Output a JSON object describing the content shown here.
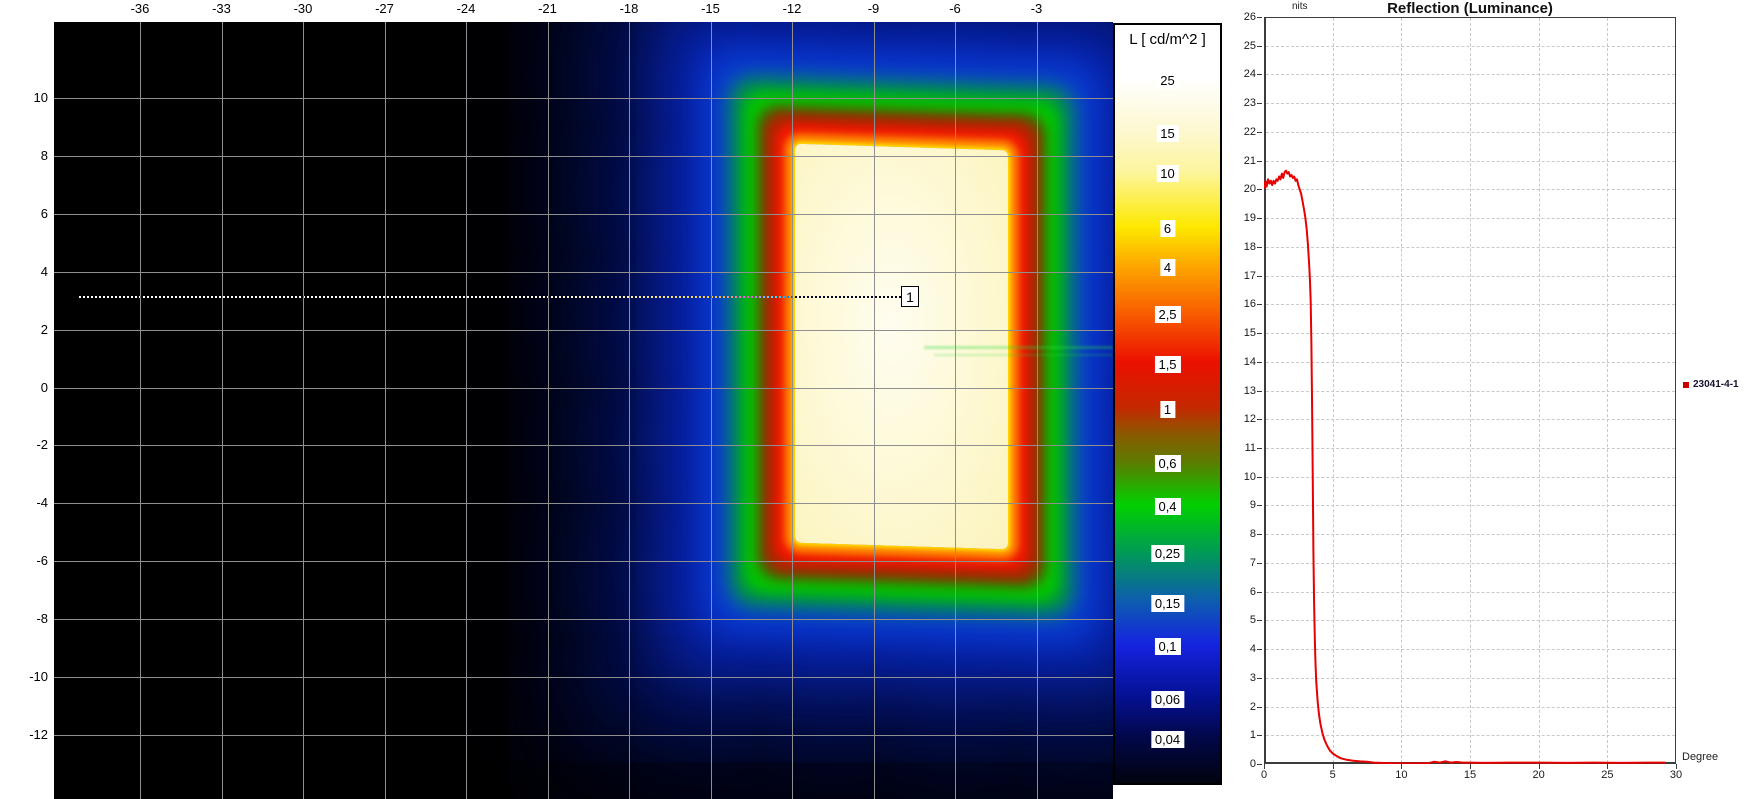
{
  "heatmap": {
    "x_axis_ticks": [
      "-36",
      "-33",
      "-30",
      "-27",
      "-24",
      "-21",
      "-18",
      "-15",
      "-12",
      "-9",
      "-6",
      "-3"
    ],
    "y_axis_ticks": [
      "10",
      "8",
      "6",
      "4",
      "2",
      "0",
      "-2",
      "-4",
      "-6",
      "-8",
      "-10",
      "-12"
    ],
    "marker": {
      "label": "1"
    }
  },
  "colorbar": {
    "title": "L [ cd/m^2 ]",
    "labels": [
      "25",
      "15",
      "10",
      "6",
      "4",
      "2,5",
      "1,5",
      "1",
      "0,6",
      "0,4",
      "0,25",
      "0,15",
      "0,1",
      "0,06",
      "0,04"
    ]
  },
  "colors": {
    "curve": "#e60000",
    "legend_marker": "#cc0000",
    "heatmap_grid": "#8f8f8f"
  },
  "chart_data": [
    {
      "type": "heatmap",
      "title": "",
      "xlim": [
        -39.2,
        -0.3
      ],
      "ylim": [
        -14.3,
        12.6
      ],
      "x_ticks": [
        -36,
        -33,
        -30,
        -27,
        -24,
        -21,
        -18,
        -15,
        -12,
        -9,
        -6,
        -3
      ],
      "y_ticks": [
        10,
        8,
        6,
        4,
        2,
        0,
        -2,
        -4,
        -6,
        -8,
        -10,
        -12
      ],
      "grid": true,
      "colorbar_title": "L [ cd/m^2 ]",
      "colorbar_values": [
        25,
        15,
        10,
        6,
        4,
        2.5,
        1.5,
        1,
        0.6,
        0.4,
        0.25,
        0.15,
        0.1,
        0.06,
        0.04
      ],
      "bright_region": {
        "x_range": [
          -11.9,
          -4.0
        ],
        "y_range": [
          -5.5,
          8.3
        ],
        "peak_value": 25
      },
      "marker": {
        "id": "1",
        "x": -7.7,
        "y": 3.2
      }
    },
    {
      "type": "line",
      "title": "Reflection (Luminance)",
      "ylabel": "nits",
      "xlabel": "Degree",
      "xlim": [
        0,
        30
      ],
      "ylim": [
        0,
        26
      ],
      "x_ticks": [
        0,
        5,
        10,
        15,
        20,
        25,
        30
      ],
      "y_ticks": [
        0,
        1,
        2,
        3,
        4,
        5,
        6,
        7,
        8,
        9,
        10,
        11,
        12,
        13,
        14,
        15,
        16,
        17,
        18,
        19,
        20,
        21,
        22,
        23,
        24,
        25,
        26
      ],
      "grid": true,
      "legend_position": "right",
      "series": [
        {
          "name": "23041-4-1",
          "color": "#e60000",
          "points": [
            [
              0,
              20.05
            ],
            [
              0.1,
              20.3
            ],
            [
              0.2,
              20.1
            ],
            [
              0.3,
              20.35
            ],
            [
              0.4,
              20.2
            ],
            [
              0.5,
              20.3
            ],
            [
              0.6,
              20.15
            ],
            [
              0.7,
              20.3
            ],
            [
              0.8,
              20.2
            ],
            [
              0.9,
              20.35
            ],
            [
              1,
              20.3
            ],
            [
              1.1,
              20.45
            ],
            [
              1.2,
              20.35
            ],
            [
              1.3,
              20.55
            ],
            [
              1.4,
              20.4
            ],
            [
              1.5,
              20.6
            ],
            [
              1.6,
              20.65
            ],
            [
              1.7,
              20.55
            ],
            [
              1.8,
              20.6
            ],
            [
              1.9,
              20.45
            ],
            [
              2,
              20.5
            ],
            [
              2.1,
              20.4
            ],
            [
              2.2,
              20.45
            ],
            [
              2.3,
              20.3
            ],
            [
              2.4,
              20.35
            ],
            [
              2.5,
              20.15
            ],
            [
              2.6,
              20.0
            ],
            [
              2.7,
              19.85
            ],
            [
              2.8,
              19.6
            ],
            [
              2.9,
              19.35
            ],
            [
              3,
              19.05
            ],
            [
              3.1,
              18.65
            ],
            [
              3.2,
              18.1
            ],
            [
              3.3,
              17.3
            ],
            [
              3.35,
              16.8
            ],
            [
              3.4,
              16.1
            ],
            [
              3.45,
              14.6
            ],
            [
              3.5,
              12.4
            ],
            [
              3.55,
              9.8
            ],
            [
              3.6,
              7.4
            ],
            [
              3.65,
              5.6
            ],
            [
              3.7,
              4.4
            ],
            [
              3.75,
              3.5
            ],
            [
              3.8,
              2.9
            ],
            [
              3.9,
              2.2
            ],
            [
              4,
              1.75
            ],
            [
              4.1,
              1.42
            ],
            [
              4.25,
              1.08
            ],
            [
              4.4,
              0.85
            ],
            [
              4.6,
              0.63
            ],
            [
              4.8,
              0.47
            ],
            [
              5,
              0.37
            ],
            [
              5.3,
              0.27
            ],
            [
              5.6,
              0.2
            ],
            [
              6,
              0.15
            ],
            [
              6.5,
              0.11
            ],
            [
              7,
              0.09
            ],
            [
              7.5,
              0.08
            ],
            [
              8,
              0.05
            ],
            [
              9,
              0.03
            ],
            [
              10,
              0.02
            ],
            [
              11,
              0.02
            ],
            [
              12,
              0.03
            ],
            [
              12.4,
              0.08
            ],
            [
              12.8,
              0.05
            ],
            [
              13.2,
              0.09
            ],
            [
              13.6,
              0.05
            ],
            [
              14,
              0.07
            ],
            [
              14.5,
              0.05
            ],
            [
              15,
              0.05
            ],
            [
              16,
              0.04
            ],
            [
              18,
              0.05
            ],
            [
              20,
              0.05
            ],
            [
              22,
              0.04
            ],
            [
              24,
              0.05
            ],
            [
              26,
              0.04
            ],
            [
              28,
              0.05
            ],
            [
              29.2,
              0.05
            ]
          ]
        }
      ]
    }
  ]
}
